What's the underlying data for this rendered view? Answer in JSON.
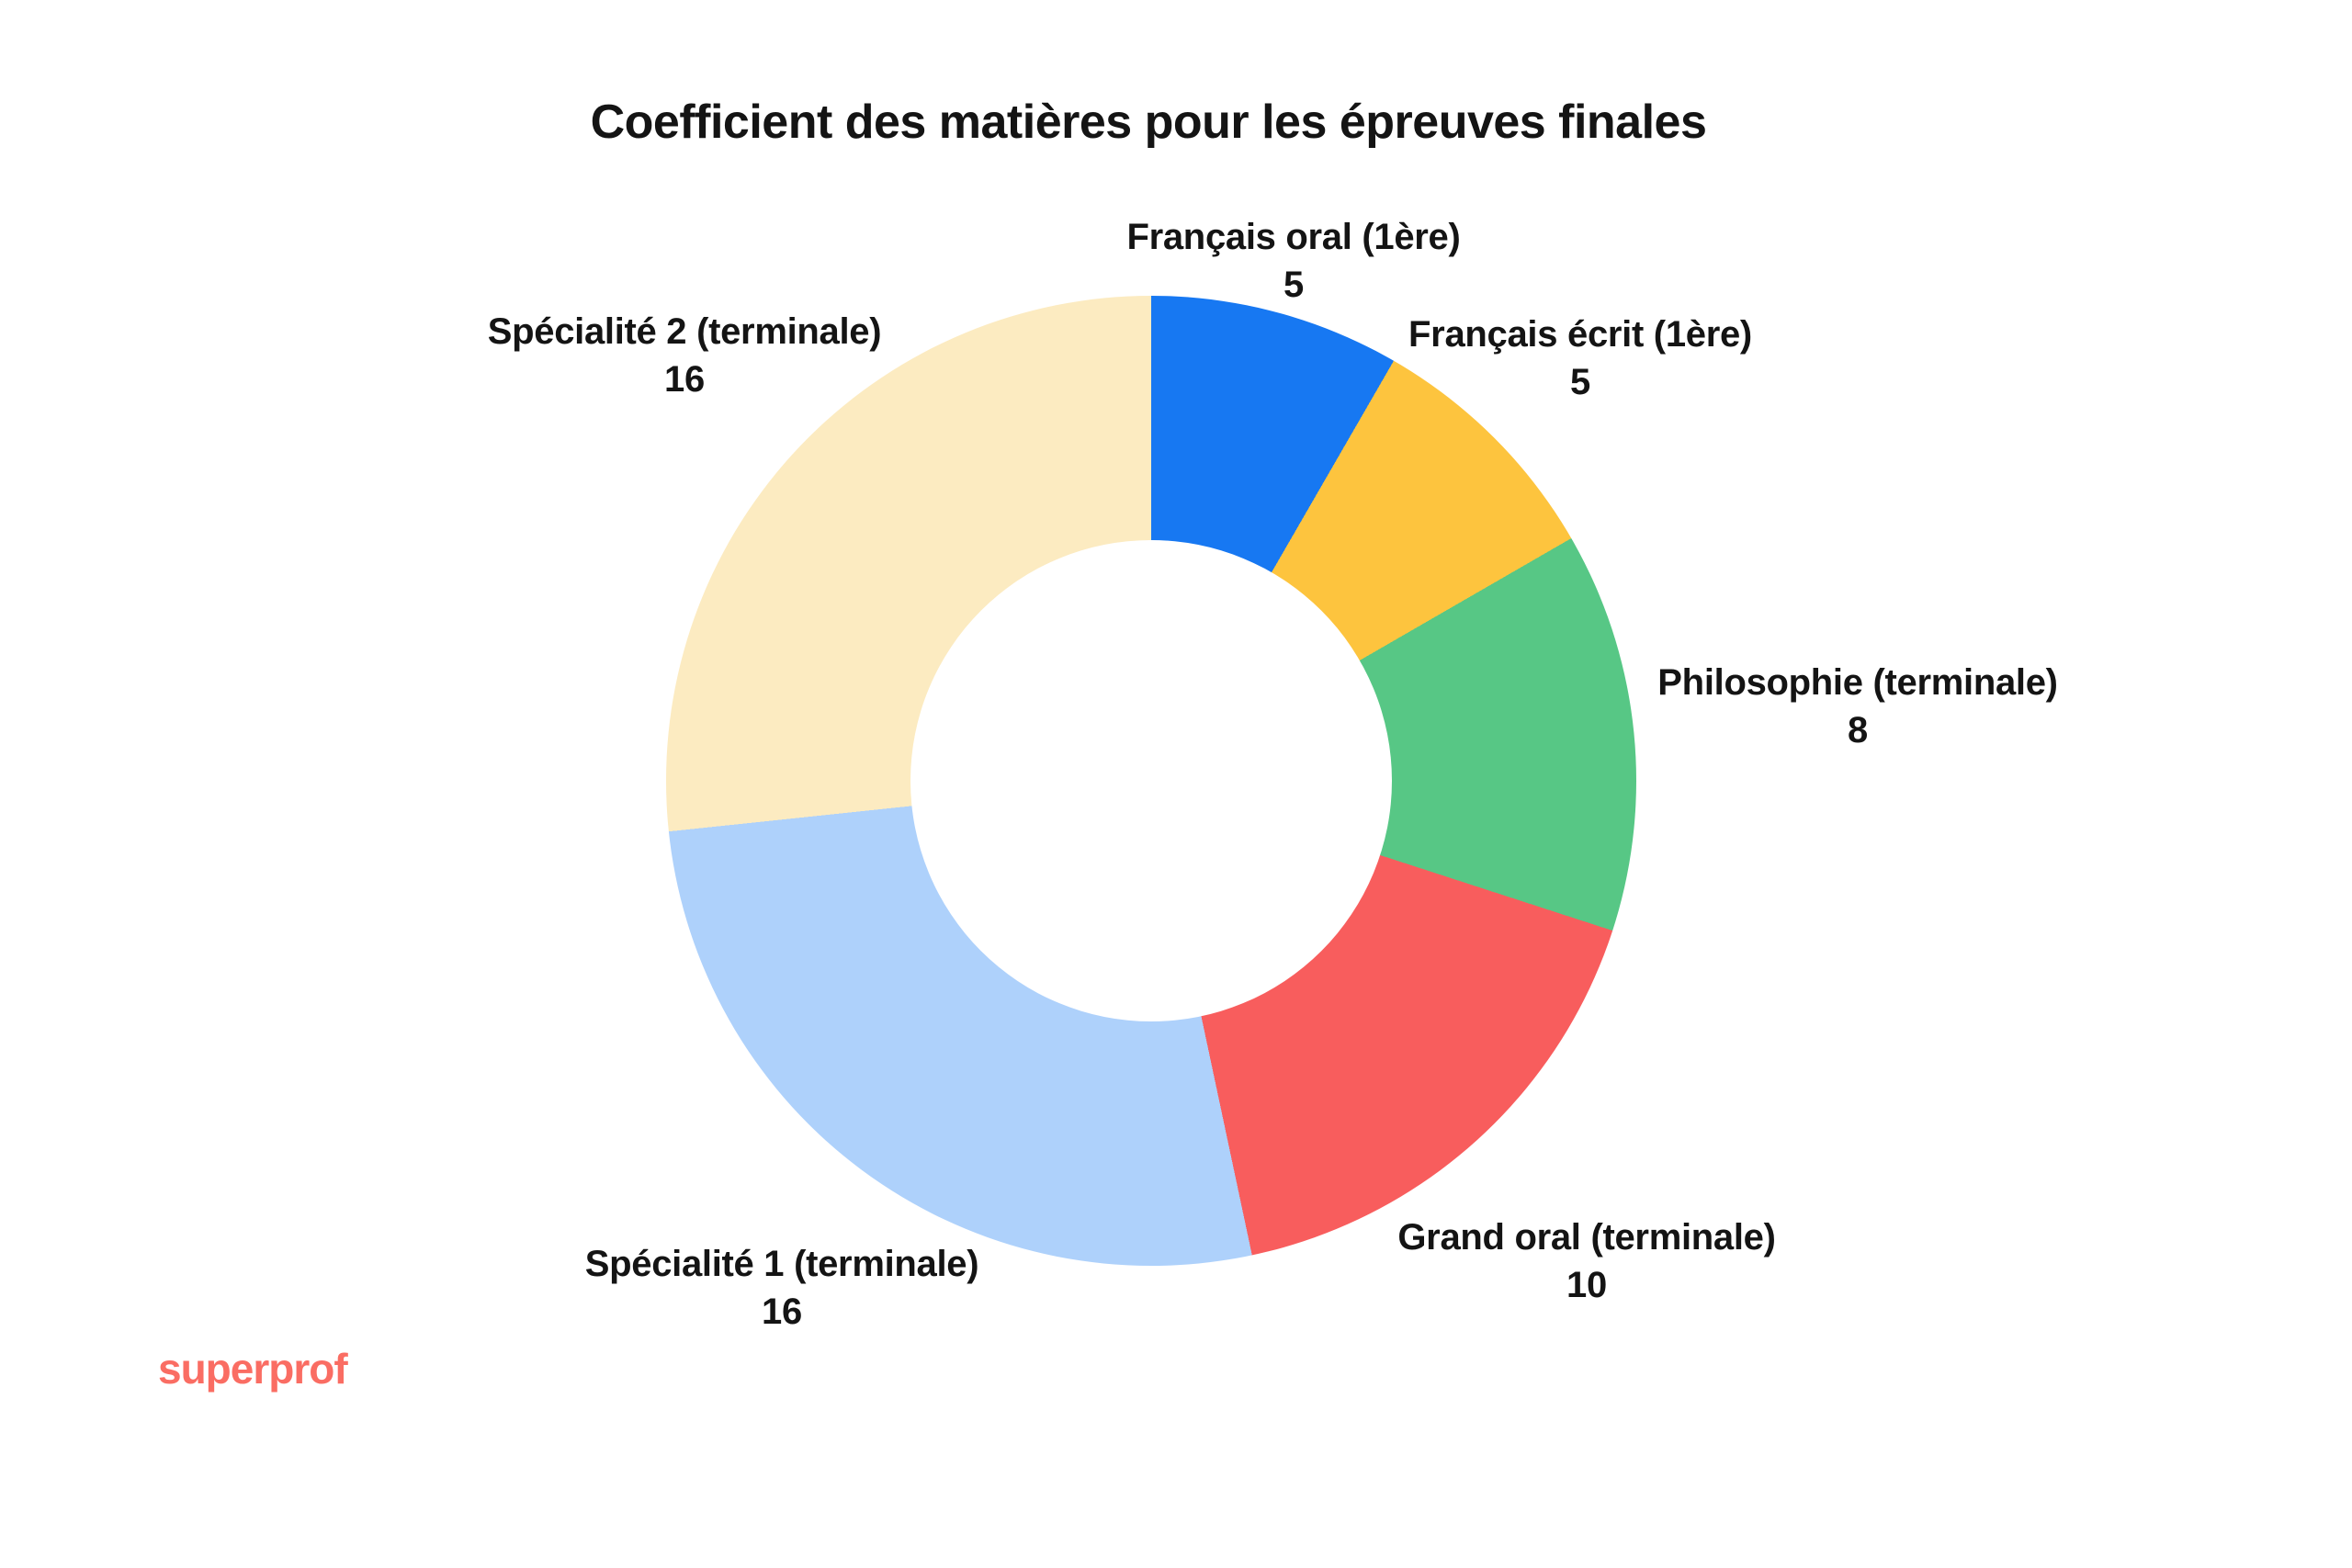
{
  "page": {
    "background": "#ffffff",
    "text_color": "#141414",
    "logo": "superprof",
    "logo_color": "#FA6D63"
  },
  "chart_data": {
    "type": "pie",
    "subtype": "donut",
    "title": "Coefficient des matières pour les épreuves finales",
    "direction": "clockwise",
    "start_angle_deg": 0,
    "inner_radius_ratio": 0.5,
    "total": 60,
    "legend": "none",
    "grid": false,
    "segments": [
      {
        "label": "Français oral (1ère)",
        "value": 5,
        "angle_deg": 30,
        "color": "#1778F2"
      },
      {
        "label": "Français écrit (1ère)",
        "value": 5,
        "angle_deg": 30,
        "color": "#FDC43E"
      },
      {
        "label": "Philosophie (terminale)",
        "value": 8,
        "angle_deg": 48,
        "color": "#57C785"
      },
      {
        "label": "Grand oral (terminale)",
        "value": 10,
        "angle_deg": 60,
        "color": "#F85D5D"
      },
      {
        "label": "Spécialité 1 (terminale)",
        "value": 16,
        "angle_deg": 96,
        "color": "#AED1FB"
      },
      {
        "label": "Spécialité 2 (terminale)",
        "value": 16,
        "angle_deg": 96,
        "color": "#FCEBC1"
      }
    ]
  }
}
